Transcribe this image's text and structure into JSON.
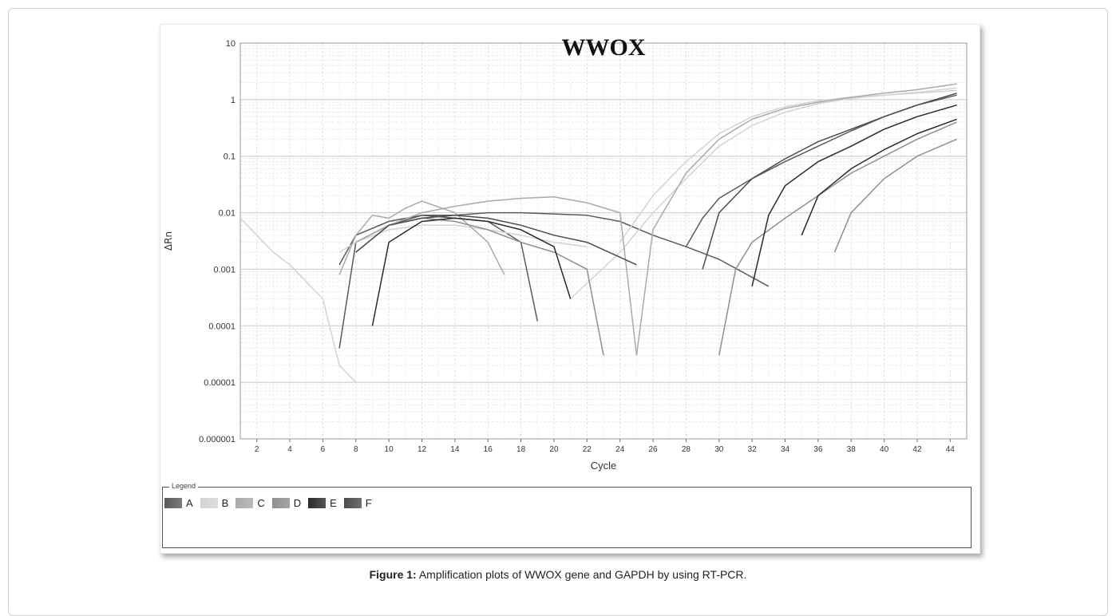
{
  "caption": {
    "label": "Figure 1:",
    "text": " Amplification plots of WWOX gene and GAPDH by using RT-PCR."
  },
  "legend": {
    "title": "Legend",
    "items": [
      {
        "label": "A",
        "color": "#5a5a5a"
      },
      {
        "label": "B",
        "color": "#d3d3d3"
      },
      {
        "label": "C",
        "color": "#aaaaaa"
      },
      {
        "label": "D",
        "color": "#8f8f8f"
      },
      {
        "label": "E",
        "color": "#2a2a2a"
      },
      {
        "label": "F",
        "color": "#4b4b4b"
      }
    ]
  },
  "chart_data": {
    "type": "line",
    "title": "WWOX",
    "xlabel": "Cycle",
    "ylabel": "ΔRn",
    "xlim": [
      1,
      45
    ],
    "ylim": [
      1e-06,
      10
    ],
    "yscale": "log",
    "grid": true,
    "legend_position": "bottom",
    "x_ticks": [
      "2",
      "4",
      "6",
      "8",
      "10",
      "12",
      "14",
      "16",
      "18",
      "20",
      "22",
      "24",
      "26",
      "28",
      "30",
      "32",
      "34",
      "36",
      "38",
      "40",
      "42",
      "44"
    ],
    "y_ticks": [
      "10",
      "1",
      "0.1",
      "0.01",
      "0.001",
      "0.0001",
      "0.00001",
      "0.000001"
    ],
    "series": [
      {
        "name": "A",
        "color": "#5a5a5a",
        "x": [
          7,
          8,
          10,
          12,
          14,
          16,
          18,
          19
        ],
        "y": [
          4e-05,
          0.003,
          0.006,
          0.009,
          0.008,
          0.007,
          0.003,
          0.00012
        ]
      },
      {
        "name": "A",
        "color": "#5a5a5a",
        "x": [
          7,
          8,
          10,
          12,
          14,
          16,
          18,
          20,
          22,
          24,
          26,
          28,
          30,
          33
        ],
        "y": [
          0.0012,
          0.004,
          0.007,
          0.009,
          0.009,
          0.01,
          0.01,
          0.0095,
          0.009,
          0.007,
          0.004,
          0.0025,
          0.0015,
          0.0005
        ]
      },
      {
        "name": "A",
        "color": "#5a5a5a",
        "x": [
          28,
          29,
          30,
          32,
          34,
          36,
          38,
          40,
          42,
          44.4
        ],
        "y": [
          0.0025,
          0.008,
          0.018,
          0.04,
          0.08,
          0.15,
          0.28,
          0.5,
          0.8,
          1.2
        ]
      },
      {
        "name": "B",
        "color": "#d3d3d3",
        "x": [
          1,
          2,
          3,
          4,
          5,
          6,
          7,
          8
        ],
        "y": [
          0.008,
          0.004,
          0.002,
          0.0012,
          0.0006,
          0.0003,
          2e-05,
          1e-05
        ]
      },
      {
        "name": "B",
        "color": "#d3d3d3",
        "x": [
          7,
          8,
          10,
          12,
          14,
          16,
          18,
          20,
          22
        ],
        "y": [
          0.002,
          0.003,
          0.005,
          0.006,
          0.006,
          0.005,
          0.004,
          0.003,
          0.0025
        ]
      },
      {
        "name": "B",
        "color": "#d3d3d3",
        "x": [
          21,
          24,
          26,
          28,
          30,
          32,
          34,
          36,
          38,
          40,
          42,
          44.4
        ],
        "y": [
          0.0003,
          0.002,
          0.01,
          0.04,
          0.15,
          0.35,
          0.6,
          0.85,
          1.05,
          1.2,
          1.35,
          1.6
        ]
      },
      {
        "name": "B",
        "color": "#d3d3d3",
        "x": [
          24,
          26,
          28,
          30,
          32,
          34,
          36,
          38,
          40,
          42,
          44.4
        ],
        "y": [
          0.003,
          0.02,
          0.08,
          0.25,
          0.5,
          0.75,
          0.95,
          1.1,
          1.2,
          1.3,
          1.45
        ]
      },
      {
        "name": "C",
        "color": "#aaaaaa",
        "x": [
          7,
          8,
          9,
          10,
          11,
          12,
          14,
          16,
          17
        ],
        "y": [
          0.0008,
          0.004,
          0.009,
          0.008,
          0.012,
          0.016,
          0.01,
          0.003,
          0.0008
        ]
      },
      {
        "name": "C",
        "color": "#aaaaaa",
        "x": [
          8,
          10,
          12,
          14,
          16,
          18,
          20,
          22,
          24,
          25
        ],
        "y": [
          0.003,
          0.006,
          0.01,
          0.013,
          0.016,
          0.018,
          0.019,
          0.015,
          0.01,
          3e-05
        ]
      },
      {
        "name": "C",
        "color": "#aaaaaa",
        "x": [
          25,
          26,
          28,
          30,
          32,
          34,
          36,
          38,
          40,
          42,
          44.4
        ],
        "y": [
          3e-05,
          0.005,
          0.05,
          0.2,
          0.45,
          0.7,
          0.9,
          1.1,
          1.3,
          1.5,
          1.9
        ]
      },
      {
        "name": "D",
        "color": "#8f8f8f",
        "x": [
          8,
          10,
          12,
          14,
          16,
          18,
          20,
          22,
          23
        ],
        "y": [
          0.002,
          0.006,
          0.008,
          0.007,
          0.005,
          0.003,
          0.002,
          0.001,
          3e-05
        ]
      },
      {
        "name": "D",
        "color": "#8f8f8f",
        "x": [
          30,
          31,
          32,
          34,
          36,
          38,
          40,
          42,
          44.4
        ],
        "y": [
          3e-05,
          0.001,
          0.003,
          0.008,
          0.02,
          0.05,
          0.1,
          0.2,
          0.4
        ]
      },
      {
        "name": "D",
        "color": "#8f8f8f",
        "x": [
          37,
          38,
          40,
          42,
          44.4
        ],
        "y": [
          0.002,
          0.01,
          0.04,
          0.1,
          0.2
        ]
      },
      {
        "name": "E",
        "color": "#2a2a2a",
        "x": [
          9,
          10,
          12,
          14,
          16,
          18,
          20,
          21
        ],
        "y": [
          0.0001,
          0.003,
          0.007,
          0.008,
          0.007,
          0.005,
          0.0025,
          0.0003
        ]
      },
      {
        "name": "E",
        "color": "#2a2a2a",
        "x": [
          32,
          33,
          34,
          36,
          38,
          40,
          42,
          44.4
        ],
        "y": [
          0.0005,
          0.009,
          0.03,
          0.08,
          0.15,
          0.3,
          0.5,
          0.8
        ]
      },
      {
        "name": "E",
        "color": "#2a2a2a",
        "x": [
          35,
          36,
          38,
          40,
          42,
          44.4
        ],
        "y": [
          0.004,
          0.02,
          0.06,
          0.13,
          0.25,
          0.45
        ]
      },
      {
        "name": "F",
        "color": "#4b4b4b",
        "x": [
          8,
          10,
          12,
          14,
          16,
          18,
          20,
          22,
          25
        ],
        "y": [
          0.002,
          0.006,
          0.008,
          0.009,
          0.008,
          0.006,
          0.004,
          0.003,
          0.0012
        ]
      },
      {
        "name": "F",
        "color": "#4b4b4b",
        "x": [
          29,
          30,
          32,
          34,
          36,
          38,
          40,
          42,
          44.4
        ],
        "y": [
          0.001,
          0.01,
          0.04,
          0.09,
          0.18,
          0.3,
          0.5,
          0.8,
          1.3
        ]
      }
    ]
  }
}
